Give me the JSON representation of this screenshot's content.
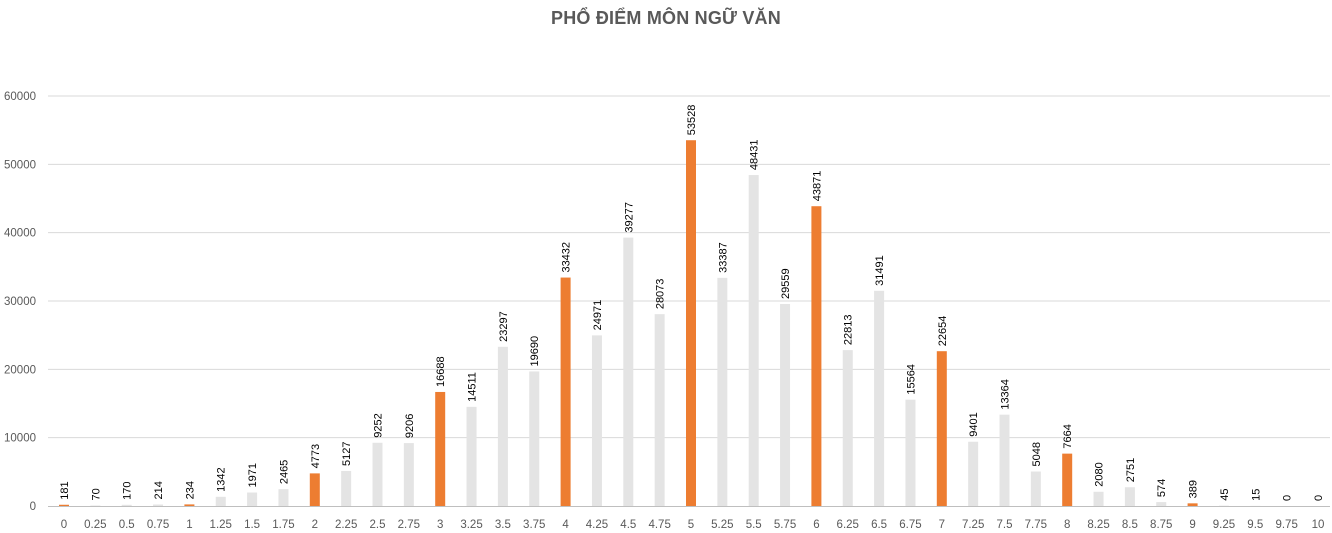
{
  "chart_data": {
    "type": "bar",
    "title": "PHỔ ĐIỂM MÔN NGỮ VĂN",
    "xlabel": "",
    "ylabel": "",
    "ylim": [
      0,
      60000
    ],
    "yticks": [
      "0",
      "10000",
      "20000",
      "30000",
      "40000",
      "50000",
      "60000"
    ],
    "grid": true,
    "legend": "none",
    "colors": {
      "highlight": "#ED7D31",
      "default": "#E4E4E4",
      "grid": "#D9D9D9",
      "axis": "#BFBFBF"
    },
    "categories": [
      "0",
      "0.25",
      "0.5",
      "0.75",
      "1",
      "1.25",
      "1.5",
      "1.75",
      "2",
      "2.25",
      "2.5",
      "2.75",
      "3",
      "3.25",
      "3.5",
      "3.75",
      "4",
      "4.25",
      "4.5",
      "4.75",
      "5",
      "5.25",
      "5.5",
      "5.75",
      "6",
      "6.25",
      "6.5",
      "6.75",
      "7",
      "7.25",
      "7.5",
      "7.75",
      "8",
      "8.25",
      "8.5",
      "8.75",
      "9",
      "9.25",
      "9.5",
      "9.75",
      "10"
    ],
    "values": [
      181,
      70,
      170,
      214,
      234,
      1342,
      1971,
      2465,
      4773,
      5127,
      9252,
      9206,
      16688,
      14511,
      23297,
      19690,
      33432,
      24971,
      39277,
      28073,
      53528,
      33387,
      48431,
      29559,
      43871,
      22813,
      31491,
      15564,
      22654,
      9401,
      13364,
      5048,
      7664,
      2080,
      2751,
      574,
      389,
      45,
      15,
      0,
      0
    ],
    "highlighted_categories": [
      "0",
      "1",
      "2",
      "3",
      "4",
      "5",
      "6",
      "7",
      "8",
      "9",
      "10"
    ]
  }
}
